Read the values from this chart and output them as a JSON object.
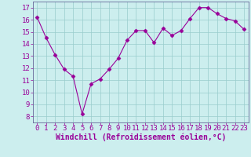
{
  "x": [
    0,
    1,
    2,
    3,
    4,
    5,
    6,
    7,
    8,
    9,
    10,
    11,
    12,
    13,
    14,
    15,
    16,
    17,
    18,
    19,
    20,
    21,
    22,
    23
  ],
  "y": [
    16.2,
    14.5,
    13.1,
    11.9,
    11.3,
    8.2,
    10.7,
    11.1,
    11.9,
    12.8,
    14.3,
    15.1,
    15.1,
    14.1,
    15.3,
    14.7,
    15.1,
    16.1,
    17.0,
    17.0,
    16.5,
    16.1,
    15.9,
    15.2
  ],
  "line_color": "#990099",
  "marker": "D",
  "marker_size": 2.5,
  "bg_color": "#cceeee",
  "grid_color": "#99cccc",
  "xlabel": "Windchill (Refroidissement éolien,°C)",
  "xlabel_color": "#990099",
  "xlabel_fontsize": 7,
  "tick_color": "#990099",
  "tick_fontsize": 6.5,
  "ylim": [
    7.5,
    17.5
  ],
  "xlim": [
    -0.5,
    23.5
  ],
  "yticks": [
    8,
    9,
    10,
    11,
    12,
    13,
    14,
    15,
    16,
    17
  ],
  "xticks": [
    0,
    1,
    2,
    3,
    4,
    5,
    6,
    7,
    8,
    9,
    10,
    11,
    12,
    13,
    14,
    15,
    16,
    17,
    18,
    19,
    20,
    21,
    22,
    23
  ],
  "spine_color": "#666699"
}
